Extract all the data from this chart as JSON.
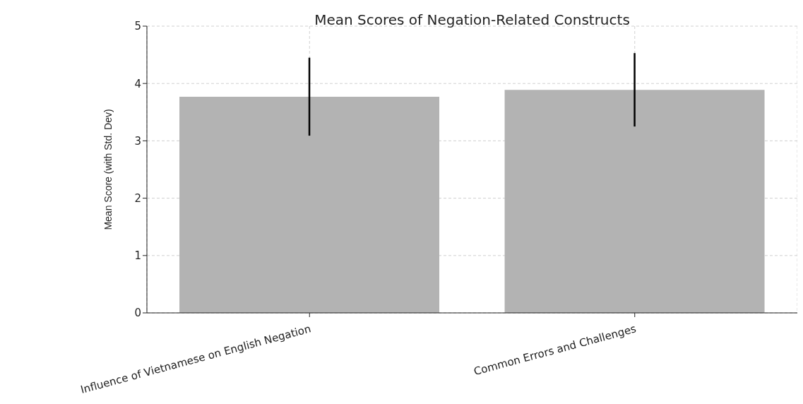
{
  "chart_data": {
    "type": "bar",
    "title": "Mean Scores of Negation-Related Constructs",
    "ylabel": "Mean Score (with Std. Dev)",
    "categories": [
      "Influence of Vietnamese on English Negation",
      "Common Errors and Challenges"
    ],
    "values": [
      3.77,
      3.89
    ],
    "errors": [
      0.68,
      0.64
    ],
    "color": "#b3b3b3",
    "ylim": [
      0,
      5
    ],
    "yticks": [
      0,
      1,
      2,
      3,
      4,
      5
    ],
    "grid": true
  }
}
